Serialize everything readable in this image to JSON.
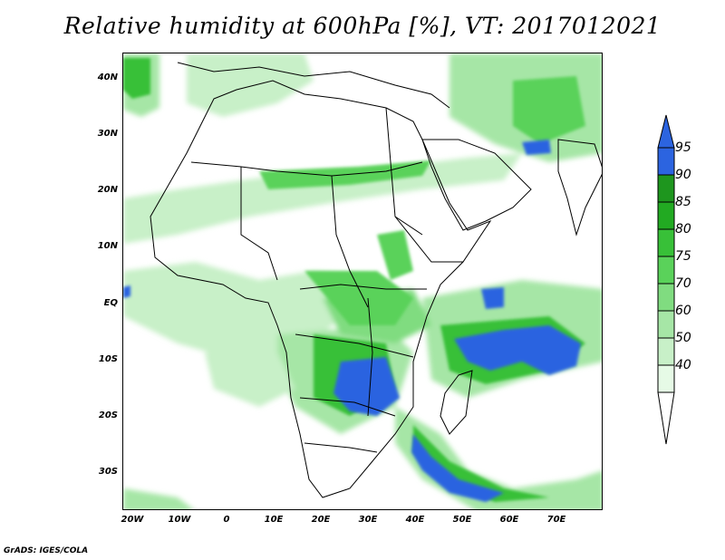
{
  "title": "Relative humidity at 600hPa [%], VT: 2017012021",
  "footer": "GrADS: IGES/COLA",
  "map": {
    "lat_labels": [
      "40N",
      "30N",
      "20N",
      "10N",
      "EQ",
      "10S",
      "20S",
      "30S"
    ],
    "lon_labels": [
      "20W",
      "10W",
      "0",
      "10E",
      "20E",
      "30E",
      "40E",
      "50E",
      "60E",
      "70E"
    ],
    "lon_range": [
      -22,
      80
    ],
    "lat_range": [
      -37,
      45
    ]
  },
  "colorbar": {
    "levels": [
      "40",
      "50",
      "60",
      "70",
      "75",
      "80",
      "85",
      "90",
      "95"
    ],
    "colors": [
      "#e6fae6",
      "#c8f0c8",
      "#a6e6a6",
      "#80dc80",
      "#5ad25a",
      "#38c038",
      "#22aa22",
      "#1e961e",
      "#2c64e0"
    ]
  }
}
